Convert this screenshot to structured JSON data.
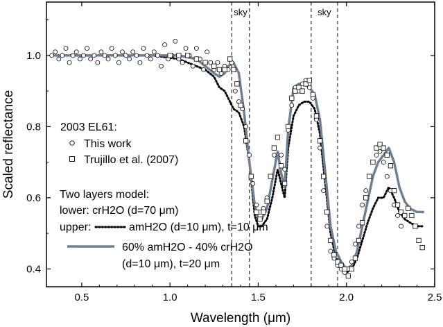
{
  "chart_data": {
    "type": "scatter",
    "xlabel": "Wavelength (μm)",
    "ylabel": "Scaled reflectance",
    "xlim": [
      0.3,
      2.5
    ],
    "ylim": [
      0.35,
      1.15
    ],
    "xticks": [
      0.5,
      1.0,
      1.5,
      2.0,
      2.5
    ],
    "xtick_labels": [
      "0.5",
      "1.0",
      "1.5",
      "2.0",
      "2.5"
    ],
    "yticks": [
      0.4,
      0.6,
      0.8,
      1.0
    ],
    "ytick_labels": [
      "0.4",
      "0.6",
      "0.8",
      "1.0"
    ],
    "sky_bands": [
      {
        "label": "sky",
        "from": 1.35,
        "to": 1.45
      },
      {
        "label": "sky",
        "from": 1.8,
        "to": 1.95
      }
    ],
    "legend": {
      "object": "2003 EL61:",
      "this_work": "This work",
      "trujillo": "Trujillo et al. (2007)",
      "model_title": "Two layers model:",
      "lower": "lower: crH2O (d=70 μm)",
      "upper_prefix": "upper:",
      "upper_dotted": "amH2O (d=10 μm), t=10 μm",
      "mix_line1": "60% amH2O - 40% crH2O",
      "mix_line2": "(d=10 μm), t=20 μm"
    },
    "series": [
      {
        "name": "This work",
        "marker": "circle",
        "x": [
          0.33,
          0.35,
          0.37,
          0.39,
          0.41,
          0.43,
          0.45,
          0.47,
          0.49,
          0.51,
          0.53,
          0.55,
          0.57,
          0.59,
          0.61,
          0.63,
          0.65,
          0.67,
          0.69,
          0.71,
          0.73,
          0.75,
          0.77,
          0.79,
          0.81,
          0.83,
          0.85,
          0.87,
          0.89,
          0.91,
          0.93,
          0.95,
          0.97,
          0.99,
          1.01,
          1.03,
          1.05,
          1.07,
          1.09,
          1.11,
          1.13,
          1.15,
          1.17,
          1.19,
          1.21,
          1.23,
          1.25,
          1.27,
          1.29,
          1.31,
          1.33,
          1.35,
          1.37,
          1.39,
          1.41,
          1.43,
          1.45,
          1.47,
          1.49,
          1.51,
          1.53,
          1.55,
          1.57,
          1.59,
          1.61,
          1.63,
          1.65,
          1.67,
          1.69,
          1.71,
          1.73,
          1.75,
          1.77,
          1.79,
          1.81,
          1.83,
          1.85,
          1.87,
          1.89,
          1.91,
          1.93,
          1.95,
          1.97,
          1.99,
          2.01,
          2.03,
          2.05,
          2.07,
          2.09,
          2.11,
          2.13,
          2.15,
          2.17,
          2.19,
          2.21,
          2.23,
          2.25,
          2.27,
          2.29,
          2.31
        ],
        "y": [
          1.0,
          1.01,
          0.99,
          1.0,
          1.02,
          0.98,
          1.0,
          1.01,
          0.99,
          1.0,
          1.02,
          0.99,
          1.0,
          0.98,
          1.01,
          1.0,
          0.99,
          1.02,
          1.0,
          0.98,
          1.01,
          1.0,
          0.99,
          1.01,
          1.0,
          0.98,
          1.02,
          1.0,
          0.99,
          1.01,
          1.0,
          0.97,
          1.03,
          0.99,
          1.0,
          1.04,
          0.99,
          0.98,
          1.02,
          1.0,
          0.97,
          1.02,
          0.99,
          0.96,
          1.01,
          0.98,
          0.96,
          0.98,
          0.95,
          0.97,
          0.96,
          0.98,
          0.9,
          0.87,
          0.85,
          0.8,
          0.72,
          0.64,
          0.58,
          0.56,
          0.57,
          0.6,
          0.66,
          0.72,
          0.77,
          0.72,
          0.68,
          0.79,
          0.86,
          0.91,
          0.9,
          0.92,
          0.93,
          0.91,
          0.88,
          0.82,
          0.74,
          0.62,
          0.52,
          0.45,
          0.43,
          0.41,
          0.4,
          0.39,
          0.4,
          0.42,
          0.47,
          0.52,
          0.58,
          0.62,
          0.66,
          0.7,
          0.72,
          0.73,
          0.7,
          0.66,
          0.62,
          0.58,
          0.55,
          0.52
        ]
      },
      {
        "name": "Trujillo et al. (2007)",
        "marker": "square",
        "x": [
          1.0,
          1.05,
          1.1,
          1.15,
          1.2,
          1.25,
          1.28,
          1.31,
          1.34,
          1.36,
          1.38,
          1.4,
          1.43,
          1.46,
          1.49,
          1.51,
          1.53,
          1.55,
          1.57,
          1.59,
          1.61,
          1.63,
          1.65,
          1.67,
          1.69,
          1.71,
          1.73,
          1.75,
          1.77,
          1.79,
          1.81,
          1.83,
          1.85,
          1.87,
          1.89,
          1.91,
          1.93,
          1.95,
          1.97,
          1.99,
          2.01,
          2.03,
          2.05,
          2.07,
          2.09,
          2.11,
          2.13,
          2.15,
          2.17,
          2.19,
          2.21,
          2.23,
          2.25,
          2.27,
          2.29,
          2.31,
          2.33,
          2.35,
          2.37,
          2.39,
          2.41,
          2.43
        ],
        "y": [
          1.0,
          1.0,
          1.0,
          0.99,
          0.98,
          0.97,
          0.96,
          0.96,
          0.99,
          0.96,
          0.92,
          0.86,
          0.76,
          0.66,
          0.56,
          0.54,
          0.56,
          0.59,
          0.66,
          0.74,
          0.77,
          0.69,
          0.64,
          0.8,
          0.88,
          0.9,
          0.91,
          0.9,
          0.92,
          0.93,
          0.89,
          0.83,
          0.76,
          0.66,
          0.56,
          0.48,
          0.44,
          0.42,
          0.41,
          0.4,
          0.38,
          0.4,
          0.43,
          0.48,
          0.53,
          0.6,
          0.66,
          0.7,
          0.74,
          0.75,
          0.74,
          0.72,
          0.69,
          0.62,
          0.58,
          0.56,
          0.55,
          0.57,
          0.55,
          0.52,
          0.48,
          0.46
        ]
      },
      {
        "name": "amH2O (d=10 μm), t=10 μm",
        "style": "dotted",
        "color": "#000000",
        "x": [
          0.33,
          0.5,
          0.7,
          0.9,
          1.05,
          1.15,
          1.2,
          1.25,
          1.28,
          1.31,
          1.33,
          1.36,
          1.39,
          1.42,
          1.45,
          1.48,
          1.5,
          1.52,
          1.55,
          1.58,
          1.61,
          1.63,
          1.65,
          1.67,
          1.7,
          1.73,
          1.76,
          1.79,
          1.82,
          1.85,
          1.88,
          1.91,
          1.94,
          1.97,
          2.0,
          2.03,
          2.06,
          2.09,
          2.12,
          2.15,
          2.18,
          2.21,
          2.24,
          2.27,
          2.3,
          2.33,
          2.36,
          2.4,
          2.44
        ],
        "y": [
          1.0,
          1.0,
          1.0,
          1.0,
          0.99,
          0.97,
          0.96,
          0.94,
          0.91,
          0.9,
          0.88,
          0.85,
          0.84,
          0.8,
          0.7,
          0.55,
          0.52,
          0.52,
          0.54,
          0.6,
          0.68,
          0.64,
          0.6,
          0.74,
          0.83,
          0.86,
          0.87,
          0.87,
          0.85,
          0.78,
          0.64,
          0.5,
          0.43,
          0.4,
          0.39,
          0.4,
          0.43,
          0.48,
          0.53,
          0.57,
          0.6,
          0.6,
          0.63,
          0.6,
          0.56,
          0.54,
          0.53,
          0.52,
          0.52
        ]
      },
      {
        "name": "60% amH2O - 40% crH2O",
        "style": "solid",
        "color": "#6f8090",
        "x": [
          0.33,
          0.5,
          0.7,
          0.9,
          1.05,
          1.15,
          1.2,
          1.25,
          1.28,
          1.31,
          1.33,
          1.36,
          1.39,
          1.42,
          1.45,
          1.48,
          1.5,
          1.52,
          1.55,
          1.58,
          1.61,
          1.63,
          1.65,
          1.67,
          1.7,
          1.73,
          1.76,
          1.79,
          1.82,
          1.85,
          1.88,
          1.91,
          1.94,
          1.97,
          2.0,
          2.03,
          2.06,
          2.09,
          2.12,
          2.15,
          2.18,
          2.21,
          2.24,
          2.27,
          2.3,
          2.33,
          2.36,
          2.4,
          2.44
        ],
        "y": [
          1.0,
          1.0,
          1.0,
          1.0,
          1.0,
          0.99,
          0.97,
          0.95,
          0.94,
          0.95,
          0.97,
          0.98,
          0.95,
          0.84,
          0.7,
          0.58,
          0.54,
          0.54,
          0.57,
          0.65,
          0.73,
          0.67,
          0.63,
          0.79,
          0.91,
          0.92,
          0.92,
          0.91,
          0.89,
          0.82,
          0.67,
          0.52,
          0.45,
          0.42,
          0.4,
          0.41,
          0.45,
          0.52,
          0.59,
          0.66,
          0.7,
          0.72,
          0.74,
          0.7,
          0.63,
          0.59,
          0.57,
          0.56,
          0.56
        ]
      }
    ]
  }
}
